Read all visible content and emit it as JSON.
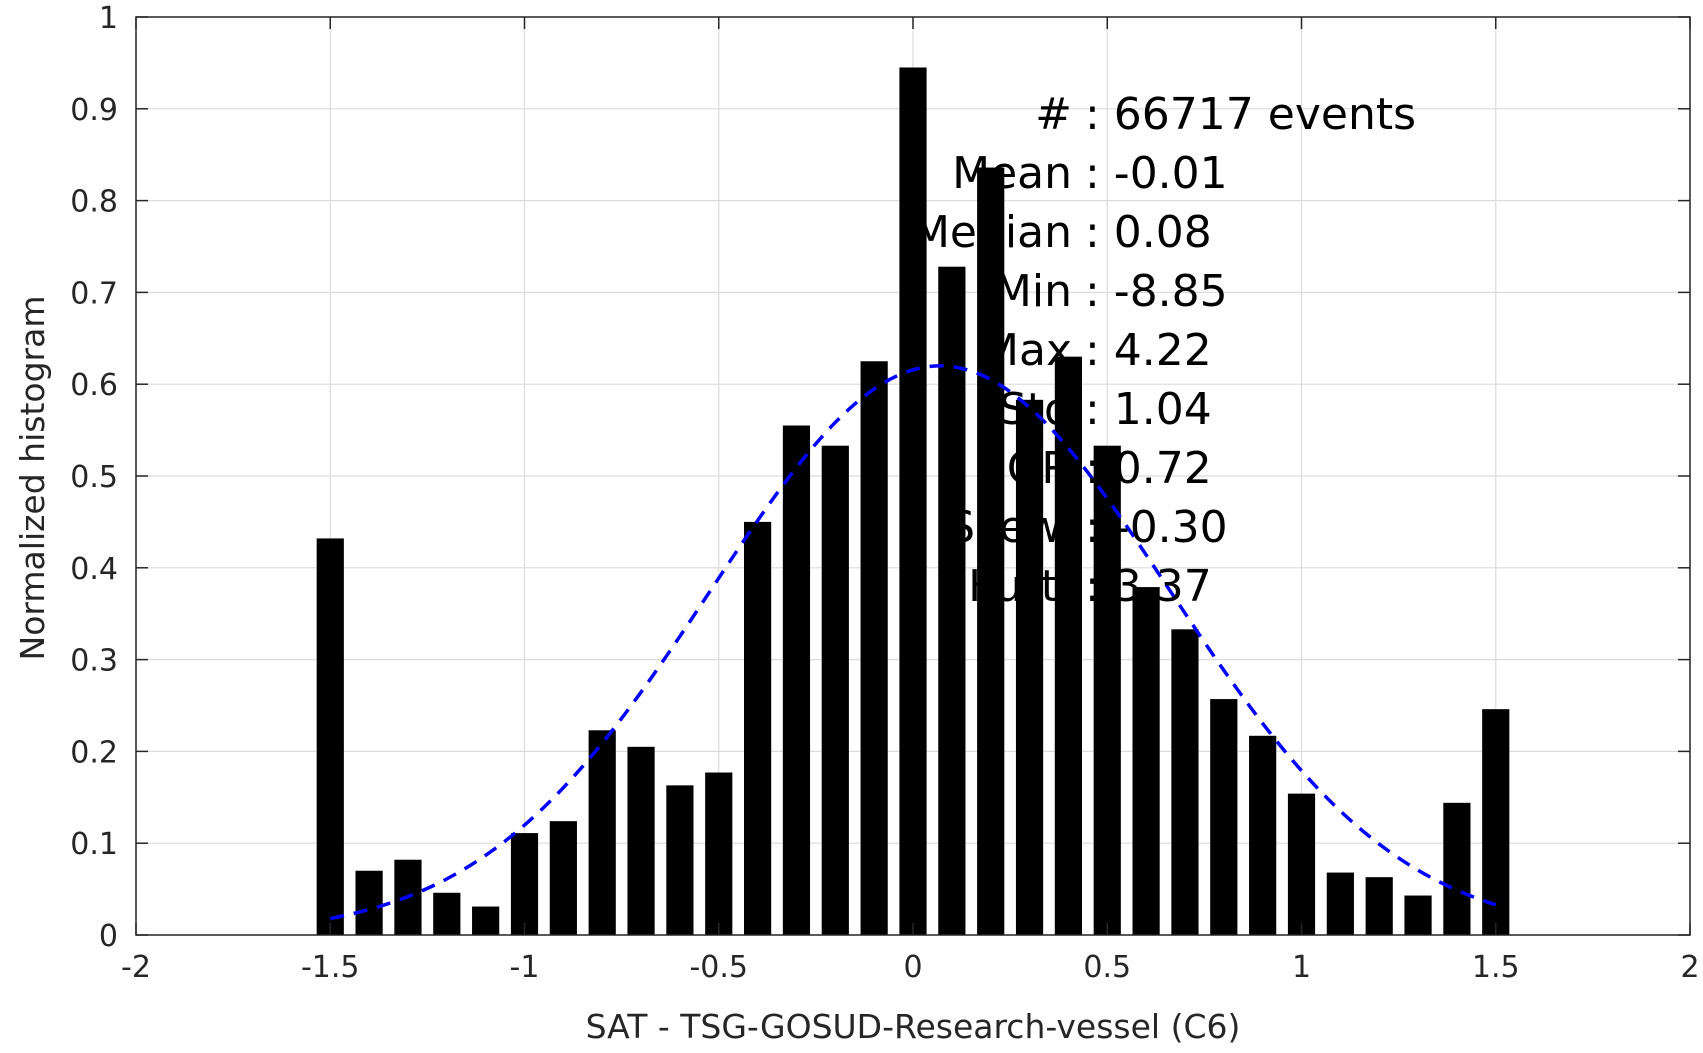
{
  "chart_data": {
    "type": "bar",
    "xlabel": "SAT - TSG-GOSUD-Research-vessel (C6)",
    "ylabel": "Normalized histogram",
    "xlim": [
      -2,
      2
    ],
    "ylim": [
      0,
      1
    ],
    "x_ticks": [
      "-2",
      "-1.5",
      "-1",
      "-0.5",
      "0",
      "0.5",
      "1",
      "1.5",
      "2"
    ],
    "x_tick_values": [
      -2,
      -1.5,
      -1,
      -0.5,
      0,
      0.5,
      1,
      1.5,
      2
    ],
    "y_ticks": [
      "0",
      "0.1",
      "0.2",
      "0.3",
      "0.4",
      "0.5",
      "0.6",
      "0.7",
      "0.8",
      "0.9",
      "1"
    ],
    "y_tick_values": [
      0,
      0.1,
      0.2,
      0.3,
      0.4,
      0.5,
      0.6,
      0.7,
      0.8,
      0.9,
      1
    ],
    "grid": true,
    "bar_color": "#000000",
    "bin_width": 0.1,
    "bars": {
      "x": [
        -1.5,
        -1.4,
        -1.3,
        -1.2,
        -1.1,
        -1.0,
        -0.9,
        -0.8,
        -0.7,
        -0.6,
        -0.5,
        -0.4,
        -0.3,
        -0.2,
        -0.1,
        0.0,
        0.1,
        0.2,
        0.3,
        0.4,
        0.5,
        0.6,
        0.7,
        0.8,
        0.9,
        1.0,
        1.1,
        1.2,
        1.3,
        1.4,
        1.5
      ],
      "values": [
        0.432,
        0.07,
        0.082,
        0.046,
        0.031,
        0.111,
        0.124,
        0.223,
        0.205,
        0.163,
        0.177,
        0.45,
        0.555,
        0.533,
        0.625,
        0.945,
        0.728,
        0.836,
        0.583,
        0.63,
        0.533,
        0.379,
        0.333,
        0.257,
        0.217,
        0.154,
        0.068,
        0.063,
        0.043,
        0.144,
        0.246
      ]
    },
    "fit_curve": {
      "type": "gaussian",
      "color": "#0000ff",
      "dashed": true,
      "mean": 0.07,
      "std": 0.59,
      "peak": 0.62,
      "x_range": [
        -1.5,
        1.5
      ]
    },
    "annotation": {
      "lines": [
        {
          "label": "#",
          "value": ": 66717 events"
        },
        {
          "label": "Mean",
          "value": ": -0.01"
        },
        {
          "label": "Median",
          "value": ": 0.08"
        },
        {
          "label": "Min",
          "value": ": -8.85"
        },
        {
          "label": "Max",
          "value": ": 4.22"
        },
        {
          "label": "Std",
          "value": ": 1.04"
        },
        {
          "label": "IQR",
          "value": ": 0.72"
        },
        {
          "label": "Skew.",
          "value": ": -0.30"
        },
        {
          "label": "Kurt.",
          "value": ": 3.37"
        }
      ]
    }
  }
}
